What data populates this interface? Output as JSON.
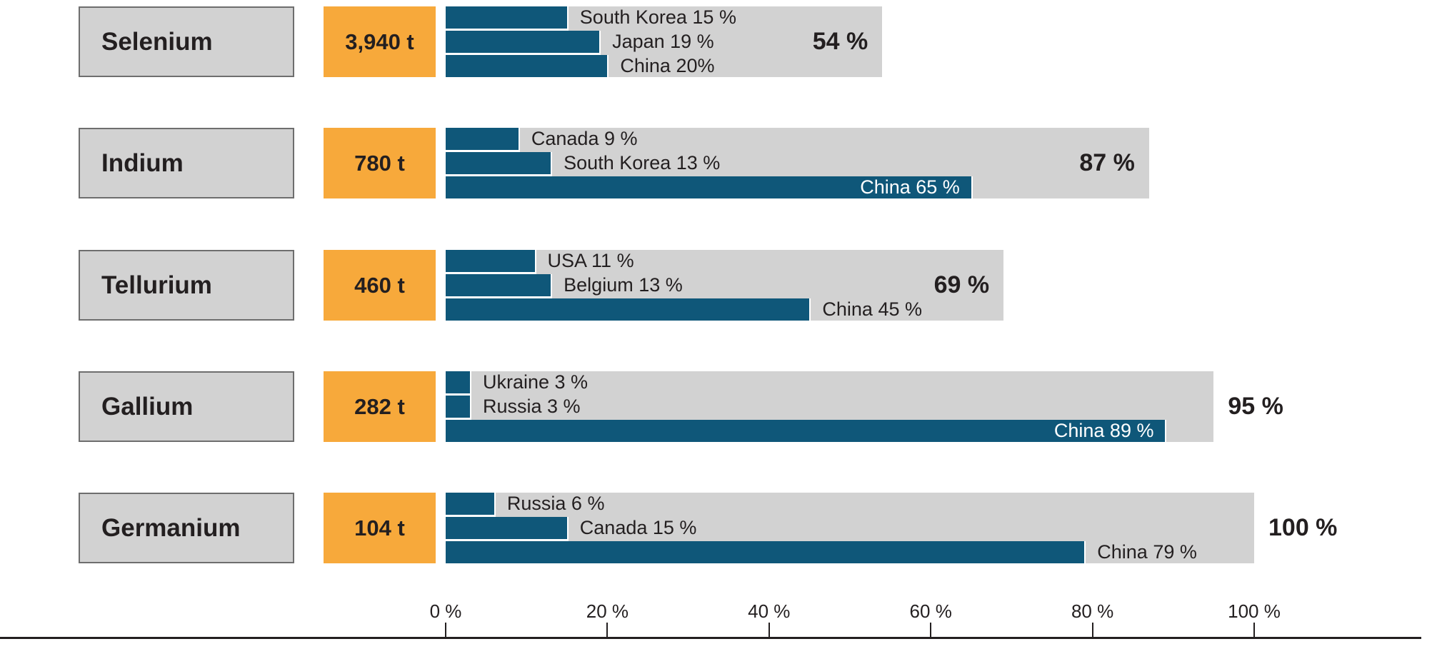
{
  "chart_data": {
    "type": "bar",
    "orientation": "horizontal",
    "unit": "%",
    "xlim": [
      0,
      100
    ],
    "grid": false,
    "axis": {
      "tick_labels": [
        "0 %",
        "20 %",
        "40 %",
        "60 %",
        "80 %",
        "100 %"
      ],
      "tick_values": [
        0,
        20,
        40,
        60,
        80,
        100
      ]
    },
    "rows": [
      {
        "element": "Selenium",
        "amount": "3,940 t",
        "total_pct": 54,
        "total_label": "54 %",
        "total_inside": true,
        "producers": [
          {
            "label": "South Korea 15 %",
            "pct": 15,
            "inside": false
          },
          {
            "label": "Japan 19 %",
            "pct": 19,
            "inside": false
          },
          {
            "label": "China 20%",
            "pct": 20,
            "inside": false
          }
        ]
      },
      {
        "element": "Indium",
        "amount": "780 t",
        "total_pct": 87,
        "total_label": "87 %",
        "total_inside": true,
        "producers": [
          {
            "label": "Canada 9 %",
            "pct": 9,
            "inside": false
          },
          {
            "label": "South Korea 13 %",
            "pct": 13,
            "inside": false
          },
          {
            "label": "China 65 %",
            "pct": 65,
            "inside": true
          }
        ]
      },
      {
        "element": "Tellurium",
        "amount": "460 t",
        "total_pct": 69,
        "total_label": "69 %",
        "total_inside": true,
        "producers": [
          {
            "label": "USA 11 %",
            "pct": 11,
            "inside": false
          },
          {
            "label": "Belgium 13 %",
            "pct": 13,
            "inside": false
          },
          {
            "label": "China 45 %",
            "pct": 45,
            "inside": false
          }
        ]
      },
      {
        "element": "Gallium",
        "amount": "282 t",
        "total_pct": 95,
        "total_label": "95 %",
        "total_inside": false,
        "producers": [
          {
            "label": "Ukraine 3 %",
            "pct": 3,
            "inside": false
          },
          {
            "label": "Russia 3 %",
            "pct": 3,
            "inside": false
          },
          {
            "label": "China 89 %",
            "pct": 89,
            "inside": true
          }
        ]
      },
      {
        "element": "Germanium",
        "amount": "104 t",
        "total_pct": 100,
        "total_label": "100 %",
        "total_inside": false,
        "producers": [
          {
            "label": "Russia 6 %",
            "pct": 6,
            "inside": false
          },
          {
            "label": "Canada 15 %",
            "pct": 15,
            "inside": false
          },
          {
            "label": "China 79 %",
            "pct": 79,
            "inside": false
          }
        ]
      }
    ]
  },
  "colors": {
    "producer_bar_blue": "#0f5779",
    "amount_box_orange": "#f7a93b",
    "track_gray": "#d2d2d2",
    "element_box_gray": "#d2d2d2",
    "element_box_border": "#6e6e6e",
    "text_dark": "#231f20",
    "inside_label_white": "#ffffff",
    "axis_line": "#231f20"
  }
}
